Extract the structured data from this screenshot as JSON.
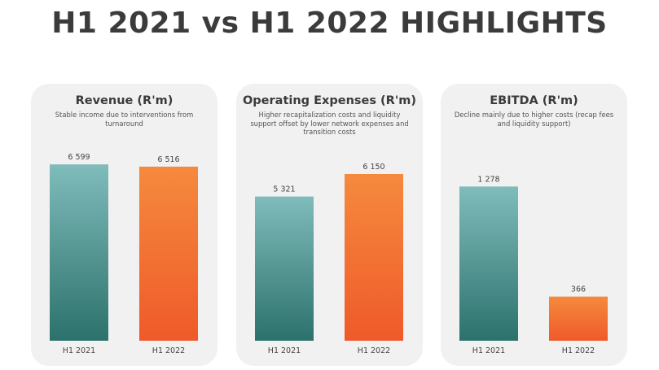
{
  "page": {
    "title": "H1 2021 vs H1 2022 HIGHLIGHTS"
  },
  "colors": {
    "h1_2021_top": "#7fbcbb",
    "h1_2021_bottom": "#2c716c",
    "h1_2022_top": "#f58a3d",
    "h1_2022_bottom": "#ef5a2a"
  },
  "chart_data": [
    {
      "type": "bar",
      "title": "Revenue (R'm)",
      "subtitle": "Stable income due to interventions from turnaround",
      "categories": [
        "H1 2021",
        "H1 2022"
      ],
      "values": [
        6599,
        6516
      ],
      "value_labels": [
        "6 599",
        "6 516"
      ],
      "ylim": [
        0,
        7000
      ]
    },
    {
      "type": "bar",
      "title": "Operating Expenses (R'm)",
      "subtitle": "Higher recapitalization costs and liquidity support offset by lower network expenses and transition costs",
      "categories": [
        "H1 2021",
        "H1 2022"
      ],
      "values": [
        5321,
        6150
      ],
      "value_labels": [
        "5 321",
        "6 150"
      ],
      "ylim": [
        0,
        6900
      ]
    },
    {
      "type": "bar",
      "title": "EBITDA (R'm)",
      "subtitle": "Decline mainly due to higher costs (recap fees and liquidity support)",
      "categories": [
        "H1 2021",
        "H1 2022"
      ],
      "values": [
        1278,
        366
      ],
      "value_labels": [
        "1 278",
        "366"
      ],
      "ylim": [
        0,
        1550
      ]
    }
  ]
}
